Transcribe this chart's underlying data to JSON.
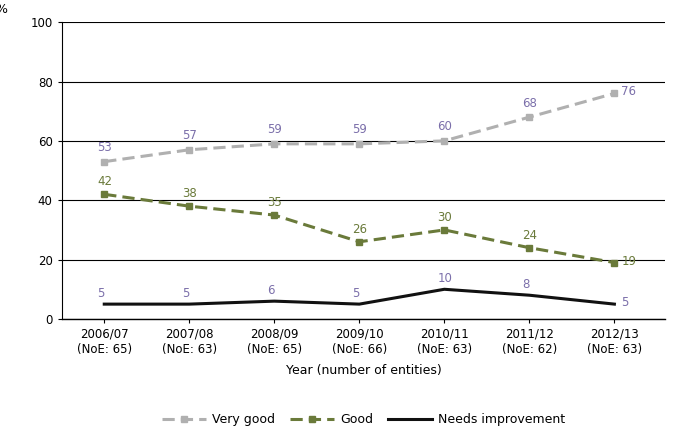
{
  "x_labels": [
    "2006/07\n(NoE: 65)",
    "2007/08\n(NoE: 63)",
    "2008/09\n(NoE: 65)",
    "2009/10\n(NoE: 66)",
    "2010/11\n(NoE: 63)",
    "2011/12\n(NoE: 62)",
    "2012/13\n(NoE: 63)"
  ],
  "x_positions": [
    0,
    1,
    2,
    3,
    4,
    5,
    6
  ],
  "very_good": [
    53,
    57,
    59,
    59,
    60,
    68,
    76
  ],
  "good": [
    42,
    38,
    35,
    26,
    30,
    24,
    19
  ],
  "needs_improvement": [
    5,
    5,
    6,
    5,
    10,
    8,
    5
  ],
  "very_good_color": "#b0b0b0",
  "good_color": "#6a7a3a",
  "needs_improvement_color": "#111111",
  "vg_label_color": "#7b6faa",
  "g_label_color": "#6a7a3a",
  "ni_label_color": "#7b6faa",
  "xlabel": "Year (number of entities)",
  "ylabel": "%",
  "ylim": [
    0,
    100
  ],
  "yticks": [
    0,
    20,
    40,
    60,
    80,
    100
  ],
  "legend_labels": [
    "Very good",
    "Good",
    "Needs improvement"
  ],
  "background_color": "#ffffff",
  "label_fontsize": 9,
  "tick_fontsize": 8.5,
  "annotation_fontsize": 8.5
}
